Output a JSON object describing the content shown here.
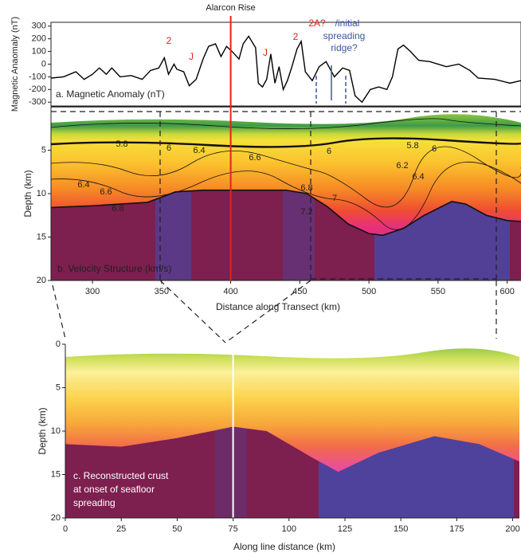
{
  "chart_data": [
    {
      "type": "line",
      "label": "a. Magnetic Anomaly (nT)",
      "y_label": "Magnetic Anaomaly (nT)",
      "rise_label": "Alarcon Rise",
      "rise_x": 400,
      "rise_color": "#e2231a",
      "color": "#000000",
      "xlim": [
        270,
        610
      ],
      "ylim": [
        -330,
        330
      ],
      "yticks": [
        300,
        200,
        100,
        0,
        -100,
        -200,
        -300
      ],
      "x": [
        270,
        279,
        288,
        294,
        300,
        305,
        310,
        314,
        320,
        328,
        336,
        342,
        348,
        352,
        355,
        359,
        361,
        366,
        370,
        375,
        380,
        384,
        389,
        393,
        397,
        401,
        406,
        409,
        413,
        418,
        420,
        423,
        426,
        429,
        432,
        435,
        438,
        441,
        444,
        448,
        451,
        454,
        459,
        464,
        469,
        475,
        481,
        486,
        490,
        495,
        501,
        507,
        513,
        517,
        521,
        525,
        530,
        536,
        544,
        556,
        565,
        573,
        579,
        591,
        602,
        610
      ],
      "values": [
        -110,
        -100,
        -60,
        -120,
        -80,
        -30,
        -80,
        -30,
        -100,
        -90,
        -120,
        -50,
        -30,
        50,
        -80,
        0,
        -40,
        -60,
        -170,
        -120,
        40,
        140,
        160,
        60,
        140,
        100,
        40,
        160,
        220,
        130,
        -150,
        -180,
        -120,
        80,
        -150,
        -20,
        -200,
        -130,
        -30,
        120,
        180,
        -60,
        -130,
        -20,
        20,
        -100,
        -30,
        -50,
        -250,
        -300,
        -200,
        -180,
        -200,
        -100,
        120,
        150,
        100,
        30,
        20,
        -20,
        0,
        -50,
        -110,
        -120,
        -150,
        -130
      ],
      "annotations": [
        {
          "text": "2",
          "color": "#e2231a"
        },
        {
          "text": "J",
          "color": "#e2231a"
        },
        {
          "text": "J",
          "color": "#e2231a"
        },
        {
          "text": "2",
          "color": "#e2231a"
        },
        {
          "text": "2A?",
          "color": "#e2231a"
        },
        {
          "text": "/initial",
          "color": "#3a55a4"
        },
        {
          "text": "spreading",
          "color": "#3a55a4"
        },
        {
          "text": "ridge?",
          "color": "#3a55a4"
        }
      ]
    },
    {
      "type": "section",
      "label": "b. Velocity Structure (km/s)",
      "x_label": "Distance along Transect (km)",
      "y_label": "Depth (km)",
      "xlim": [
        270,
        610
      ],
      "xticks": [
        300,
        350,
        400,
        450,
        500,
        550,
        600
      ],
      "ylim": [
        0,
        20
      ],
      "yticks": [
        5,
        10,
        15,
        20
      ],
      "boundary_line": true,
      "rise_x": 400,
      "rise_color": "#e2231a",
      "boundary": {
        "x": [
          270,
          300,
          340,
          360,
          380,
          440,
          455,
          470,
          485,
          500,
          510,
          525,
          540,
          560,
          570,
          585,
          600,
          610
        ],
        "depth": [
          11.6,
          11.4,
          11.0,
          9.8,
          9.6,
          9.6,
          10.0,
          11.5,
          13.5,
          14.6,
          14.8,
          14.0,
          12.5,
          10.9,
          11.2,
          12.5,
          13.1,
          13.2
        ]
      },
      "contour_labels": [
        5.8,
        6,
        6.4,
        6.6,
        6,
        5.8,
        6,
        6.2,
        6.4,
        6.4,
        6.6,
        6.8,
        6.8,
        7,
        7.2
      ]
    },
    {
      "type": "section",
      "label_lines": [
        "c. Reconstructed crust",
        "at onset of seafloor",
        "spreading"
      ],
      "x_label": "Along line distance (km)",
      "y_label": "Depth (km)",
      "xlim": [
        0,
        203
      ],
      "xticks": [
        0,
        25,
        50,
        75,
        100,
        125,
        150,
        175,
        200
      ],
      "ylim": [
        0,
        20
      ],
      "yticks": [
        0,
        5,
        10,
        15,
        20
      ],
      "boundary_line": false,
      "rise_x": 75,
      "rise_color": "#ffffff",
      "boundary": {
        "x": [
          0,
          25,
          50,
          75,
          90,
          110,
          122,
          140,
          165,
          185,
          203
        ],
        "depth": [
          11.5,
          11.8,
          10.8,
          9.5,
          10.0,
          13.0,
          14.7,
          12.5,
          10.6,
          11.5,
          13.5
        ]
      }
    }
  ]
}
